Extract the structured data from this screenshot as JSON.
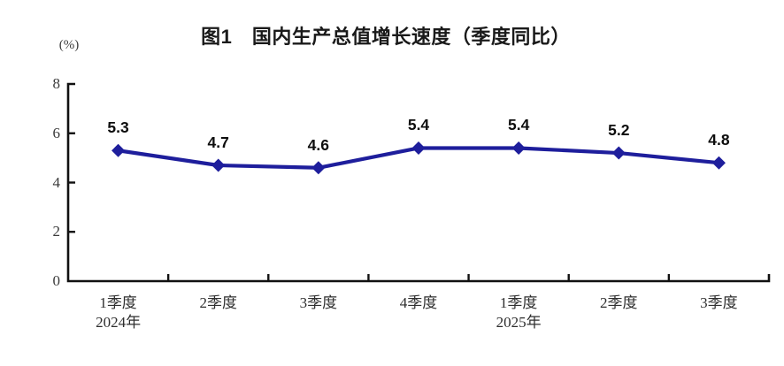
{
  "chart_data": {
    "type": "line",
    "title": "图1　国内生产总值增长速度（季度同比）",
    "unit_label": "(%)",
    "categories": [
      {
        "quarter": "1季度",
        "year": "2024年"
      },
      {
        "quarter": "2季度",
        "year": ""
      },
      {
        "quarter": "3季度",
        "year": ""
      },
      {
        "quarter": "4季度",
        "year": ""
      },
      {
        "quarter": "1季度",
        "year": "2025年"
      },
      {
        "quarter": "2季度",
        "year": ""
      },
      {
        "quarter": "3季度",
        "year": ""
      }
    ],
    "series": [
      {
        "name": "国内生产总值增长速度",
        "values": [
          5.3,
          4.7,
          4.6,
          5.4,
          5.4,
          5.2,
          4.8
        ]
      }
    ],
    "ylim": [
      0,
      8
    ],
    "yticks": [
      0,
      2,
      4,
      6,
      8
    ],
    "grid": false,
    "legend": "none",
    "marker": "diamond",
    "colors": {
      "line": "#1E1E9C",
      "axis": "#111111",
      "data_label": "#0d0d0d",
      "tick_label": "#3a3a3a",
      "background": "#ffffff"
    }
  }
}
